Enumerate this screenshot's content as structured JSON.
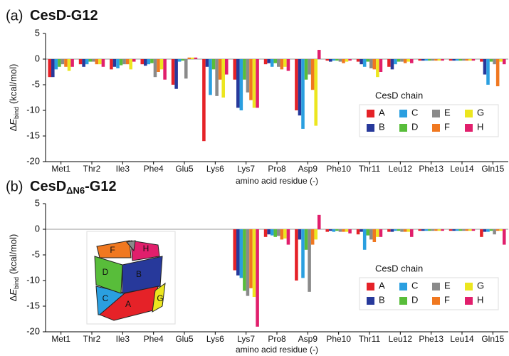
{
  "chart_data": [
    {
      "type": "bar",
      "panel_label": "(a)",
      "title": "CesD-G12",
      "x_label": "amino acid residue (-)",
      "y_label_parts": [
        "Δ",
        "E",
        "bind",
        "(kcal/mol)"
      ],
      "legend_title": "CesD chain",
      "categories": [
        "Met1",
        "Thr2",
        "Ile3",
        "Phe4",
        "Glu5",
        "Lys6",
        "Lys7",
        "Pro8",
        "Asp9",
        "Phe10",
        "Thr11",
        "Leu12",
        "Phe13",
        "Leu14",
        "Gln15"
      ],
      "ylim": [
        -20,
        5
      ],
      "yticks": [
        5,
        0,
        -5,
        -10,
        -15,
        -20
      ],
      "series": [
        {
          "name": "A",
          "color": "#e52228",
          "values": [
            -3.5,
            -1,
            -2,
            -1,
            -5,
            -16,
            -4,
            -1,
            -10,
            -0.3,
            -0.5,
            -1.5,
            -0.3,
            -0.3,
            -0.5
          ]
        },
        {
          "name": "B",
          "color": "#27399b",
          "values": [
            -3.5,
            -1.5,
            -1.5,
            -1.3,
            -5.8,
            -1.5,
            -9.5,
            -0.8,
            -11,
            -0.5,
            -1,
            -2,
            -0.3,
            -0.3,
            -3
          ]
        },
        {
          "name": "C",
          "color": "#2a9fe0",
          "values": [
            -2,
            -1,
            -1.8,
            -1,
            -0.5,
            -7,
            -10,
            -1.5,
            -13.6,
            -0.3,
            -1.5,
            -1,
            -0.3,
            -0.3,
            -5
          ]
        },
        {
          "name": "D",
          "color": "#58bd3a",
          "values": [
            -1.5,
            -0.5,
            -1.2,
            -0.8,
            -0.3,
            -2,
            -4,
            -0.8,
            -4,
            -0.3,
            -0.5,
            -0.5,
            -0.3,
            -0.3,
            -0.5
          ]
        },
        {
          "name": "E",
          "color": "#8a8a8a",
          "values": [
            -1,
            -0.5,
            -1,
            -3.5,
            -3.8,
            -7.2,
            -6.5,
            -1.5,
            -3,
            -0.5,
            -1.8,
            -0.5,
            -0.3,
            -0.3,
            -1
          ]
        },
        {
          "name": "F",
          "color": "#f07820",
          "values": [
            -1.5,
            -1,
            -1,
            -2.5,
            0.3,
            -4,
            -8,
            -2,
            -6,
            -0.8,
            -2,
            -0.8,
            -0.3,
            -0.3,
            -5.3
          ]
        },
        {
          "name": "G",
          "color": "#ece61f",
          "values": [
            -2.3,
            -1,
            -2,
            -2,
            0.3,
            -7.5,
            -9.5,
            -1.5,
            -13,
            -0.5,
            -3.5,
            -0.5,
            -0.3,
            -0.3,
            -0.5
          ]
        },
        {
          "name": "H",
          "color": "#e11f6c",
          "values": [
            -1.5,
            -1.5,
            -0.5,
            -4,
            0.3,
            -3,
            -9.5,
            -2.3,
            1.8,
            -0.3,
            -2.5,
            -0.8,
            -0.3,
            -0.3,
            -1
          ]
        }
      ]
    },
    {
      "type": "bar",
      "panel_label": "(b)",
      "title": "CesD",
      "title_subscript": "ΔN6",
      "title_suffix": "-G12",
      "x_label": "amino acid residue (-)",
      "y_label_parts": [
        "Δ",
        "E",
        "bind",
        "(kcal/mol)"
      ],
      "legend_title": "CesD chain",
      "categories": [
        "Met1",
        "Thr2",
        "Ile3",
        "Phe4",
        "Glu5",
        "Lys6",
        "Lys7",
        "Pro8",
        "Asp9",
        "Phe10",
        "Thr11",
        "Leu12",
        "Phe13",
        "Leu14",
        "Gln15"
      ],
      "ylim": [
        -20,
        5
      ],
      "yticks": [
        5,
        0,
        -5,
        -10,
        -15,
        -20
      ],
      "series": [
        {
          "name": "A",
          "color": "#e52228",
          "values": [
            null,
            null,
            null,
            null,
            null,
            null,
            -8,
            -1.5,
            -10,
            -0.5,
            -1,
            -0.5,
            -0.3,
            -0.3,
            -1.5
          ]
        },
        {
          "name": "B",
          "color": "#27399b",
          "values": [
            null,
            null,
            null,
            null,
            null,
            null,
            -9,
            -1,
            -2,
            -0.3,
            -0.5,
            -0.5,
            -0.3,
            -0.3,
            -0.5
          ]
        },
        {
          "name": "C",
          "color": "#2a9fe0",
          "values": [
            null,
            null,
            null,
            null,
            null,
            null,
            -9.5,
            -1.2,
            -9.5,
            -0.5,
            -4,
            -0.3,
            -0.3,
            -0.3,
            -0.5
          ]
        },
        {
          "name": "D",
          "color": "#58bd3a",
          "values": [
            null,
            null,
            null,
            null,
            null,
            null,
            -12,
            -1.5,
            -4,
            -0.3,
            -1.2,
            -0.3,
            -0.3,
            -0.3,
            -0.3
          ]
        },
        {
          "name": "E",
          "color": "#8a8a8a",
          "values": [
            null,
            null,
            null,
            null,
            null,
            null,
            -13,
            -1.3,
            -12.2,
            -0.5,
            -2,
            -0.5,
            -0.3,
            -0.3,
            -1
          ]
        },
        {
          "name": "F",
          "color": "#f07820",
          "values": [
            null,
            null,
            null,
            null,
            null,
            null,
            -11.5,
            -2,
            -3,
            -0.5,
            -2.5,
            -0.5,
            -0.3,
            -0.3,
            -0.3
          ]
        },
        {
          "name": "G",
          "color": "#ece61f",
          "values": [
            null,
            null,
            null,
            null,
            null,
            null,
            -13.2,
            -1.8,
            -2,
            -0.5,
            -1.5,
            -0.5,
            -0.3,
            -0.3,
            -0.3
          ]
        },
        {
          "name": "H",
          "color": "#e11f6c",
          "values": [
            null,
            null,
            null,
            null,
            null,
            null,
            -19,
            -3,
            2.8,
            -0.8,
            -1.5,
            -1.5,
            -0.3,
            -0.3,
            -3
          ]
        }
      ]
    }
  ]
}
